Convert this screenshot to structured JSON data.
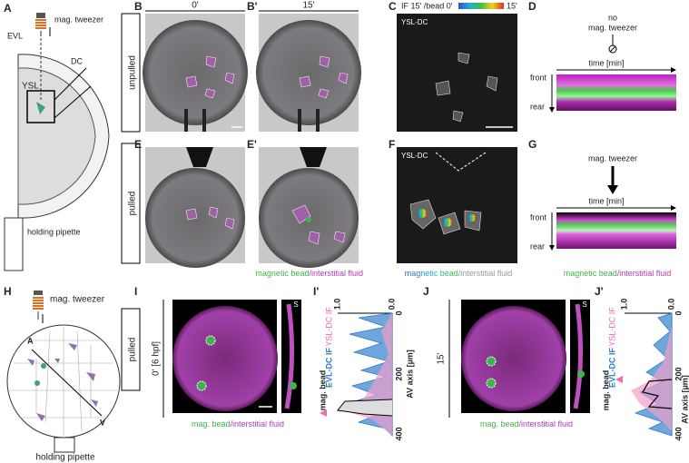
{
  "panel_a": {
    "label": "A",
    "tweezer": "mag. tweezer",
    "evl": "EVL",
    "dc": "DC",
    "ysl": "YSL",
    "pipette": "holding pipette"
  },
  "rows": {
    "unpulled": "unpulled",
    "pulled": "pulled"
  },
  "panel_b": {
    "label": "B",
    "time": "0'"
  },
  "panel_b_prime": {
    "label": "B'",
    "time": "15'"
  },
  "panel_c": {
    "label": "C",
    "colorbar_title": "IF 15' /bead 0'",
    "colorbar_end": "15'",
    "region": "YSL-DC"
  },
  "panel_d": {
    "label": "D",
    "condition": [
      "no",
      "mag. tweezer"
    ],
    "x_axis": "time [min]",
    "top": "front",
    "bottom": "rear"
  },
  "panel_e": {
    "label": "E"
  },
  "panel_e_prime": {
    "label": "E'",
    "caption": [
      "magnetic bead",
      "/interstitial fluid"
    ]
  },
  "panel_f": {
    "label": "F",
    "region": "YSL-DC",
    "caption": [
      "magnetic bead",
      "/interstitial fluid"
    ]
  },
  "panel_g": {
    "label": "G",
    "condition": "mag. tweezer",
    "x_axis": "time [min]",
    "top": "front",
    "bottom": "rear",
    "caption": [
      "magnetic bead",
      "/interstitial fluid"
    ]
  },
  "panel_h": {
    "label": "H",
    "tweezer": "mag. tweezer",
    "animal": "A",
    "vegetal": "V",
    "pipette": "holding pipette"
  },
  "panel_i": {
    "label": "I",
    "condition": "pulled",
    "time": "0' [6 hpf]",
    "side": "S",
    "caption": [
      "mag. bead",
      "/interstitial fluid"
    ]
  },
  "panel_i_prime": {
    "label": "I'",
    "top_ticks": [
      "1.0",
      "0.0"
    ],
    "right_ticks": [
      "0",
      "200",
      "400"
    ],
    "axis_label": "AV axis [µm]",
    "legend": [
      "mag. bead",
      "EVL-DC IF",
      "YSL-DC IF"
    ]
  },
  "panel_j": {
    "label": "J",
    "time": "15'",
    "side": "S",
    "caption": [
      "mag. bead",
      "/interstitial fluid"
    ]
  },
  "panel_j_prime": {
    "label": "J'",
    "top_ticks": [
      "1.0",
      "0.0"
    ],
    "right_ticks": [
      "0",
      "200",
      "400"
    ],
    "axis_label": "AV axis [µm]",
    "legend": [
      "mag. bead",
      "EVL-DC IF",
      "YSL-DC IF"
    ]
  }
}
